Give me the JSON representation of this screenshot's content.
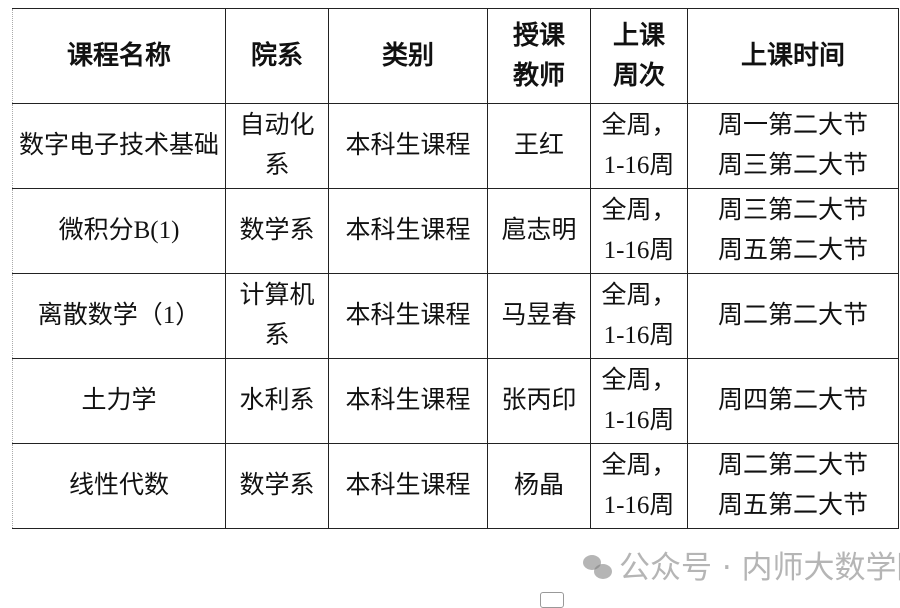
{
  "headers": [
    "课程名称",
    "院系",
    "类别",
    "授课教师",
    "上课周次",
    "上课时间"
  ],
  "rows": [
    {
      "course": "数字电子技术基础",
      "dept": "自动化系",
      "type": "本科生课程",
      "teacher": "王红",
      "weeks_a": "全周，",
      "weeks_b": "1-16周",
      "time_a": "周一第二大节",
      "time_b": "周三第二大节"
    },
    {
      "course": "微积分B(1)",
      "dept": "数学系",
      "type": "本科生课程",
      "teacher": "扈志明",
      "weeks_a": "全周，",
      "weeks_b": "1-16周",
      "time_a": "周三第二大节",
      "time_b": "周五第二大节"
    },
    {
      "course": "离散数学（1）",
      "dept": "计算机系",
      "type": "本科生课程",
      "teacher": "马昱春",
      "weeks_a": "全周，",
      "weeks_b": "1-16周",
      "time_a": "周二第二大节",
      "time_b": ""
    },
    {
      "course": "土力学",
      "dept": "水利系",
      "type": "本科生课程",
      "teacher": "张丙印",
      "weeks_a": "全周，",
      "weeks_b": "1-16周",
      "time_a": "周四第二大节",
      "time_b": ""
    },
    {
      "course": "线性代数",
      "dept": "数学系",
      "type": "本科生课程",
      "teacher": "杨晶",
      "weeks_a": "全周，",
      "weeks_b": "1-16周",
      "time_a": "周二第二大节",
      "time_b": "周五第二大节"
    }
  ],
  "watermark": {
    "text": "公众号 · 内师大数学院",
    "icon": "wechat-icon"
  }
}
